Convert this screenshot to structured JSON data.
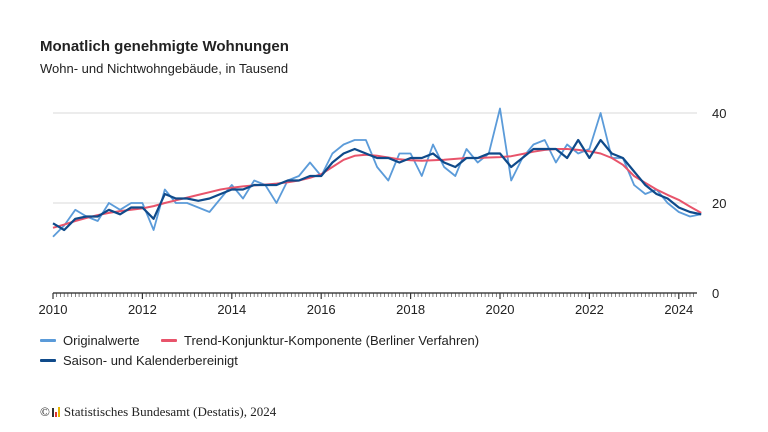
{
  "chart_data": {
    "type": "line",
    "title": "Monatlich genehmigte Wohnungen",
    "subtitle": "Wohn- und Nichtwohngebäude, in Tausend",
    "x": [
      "2010-01",
      "2010-04",
      "2010-07",
      "2010-10",
      "2011-01",
      "2011-04",
      "2011-07",
      "2011-10",
      "2012-01",
      "2012-04",
      "2012-07",
      "2012-10",
      "2013-01",
      "2013-04",
      "2013-07",
      "2013-10",
      "2014-01",
      "2014-04",
      "2014-07",
      "2014-10",
      "2015-01",
      "2015-04",
      "2015-07",
      "2015-10",
      "2016-01",
      "2016-04",
      "2016-07",
      "2016-10",
      "2017-01",
      "2017-04",
      "2017-07",
      "2017-10",
      "2018-01",
      "2018-04",
      "2018-07",
      "2018-10",
      "2019-01",
      "2019-04",
      "2019-07",
      "2019-10",
      "2020-01",
      "2020-04",
      "2020-07",
      "2020-10",
      "2021-01",
      "2021-04",
      "2021-07",
      "2021-10",
      "2022-01",
      "2022-04",
      "2022-07",
      "2022-10",
      "2023-01",
      "2023-04",
      "2023-07",
      "2023-10",
      "2024-01",
      "2024-04",
      "2024-07"
    ],
    "series": [
      {
        "name": "Originalwerte",
        "color": "#5b9bd9",
        "values": [
          12.5,
          15,
          18.5,
          17,
          16,
          20,
          18.5,
          20,
          20,
          14,
          23,
          20,
          20,
          19,
          18,
          21,
          24,
          21,
          25,
          24,
          20,
          25,
          26,
          29,
          26,
          31,
          33,
          34,
          34,
          28,
          25,
          31,
          31,
          26,
          33,
          28,
          26,
          32,
          29,
          31,
          41,
          25,
          30,
          33,
          34,
          29,
          33,
          31,
          32,
          40,
          30,
          30,
          24,
          22,
          23,
          20,
          18,
          17,
          17.5
        ]
      },
      {
        "name": "Trend-Konjunktur-Komponente (Berliner Verfahren)",
        "color": "#e8546b",
        "values": [
          14.5,
          15.2,
          16,
          16.7,
          17.3,
          17.8,
          18.2,
          18.5,
          18.8,
          19.3,
          20,
          20.6,
          21.2,
          21.8,
          22.4,
          23,
          23.4,
          23.7,
          23.9,
          24.1,
          24.3,
          24.6,
          25,
          25.6,
          26.4,
          28,
          29.6,
          30.5,
          30.7,
          30.5,
          30.1,
          29.7,
          29.5,
          29.4,
          29.5,
          29.6,
          29.8,
          30,
          30,
          30.1,
          30.2,
          30.4,
          30.9,
          31.4,
          31.8,
          32,
          32,
          31.8,
          31.5,
          31,
          30,
          28.5,
          26,
          24.5,
          23,
          21.8,
          20.7,
          19.2,
          17.8
        ]
      },
      {
        "name": "Saison- und Kalenderbereinigt",
        "color": "#0f4a8a",
        "values": [
          15.5,
          14,
          16.5,
          17,
          17,
          18.5,
          17.5,
          19,
          19,
          16.5,
          22,
          21,
          21,
          20.5,
          21,
          22,
          23,
          23,
          24,
          24,
          24,
          25,
          25,
          26,
          26,
          29,
          31,
          32,
          31,
          30,
          30,
          29,
          30,
          30,
          31,
          29,
          28,
          30,
          30,
          31,
          31,
          28,
          30,
          32,
          32,
          32,
          30,
          34,
          30,
          34,
          31,
          30,
          27,
          24,
          22,
          21,
          19,
          18,
          17.5
        ]
      }
    ],
    "xticks": [
      "2010",
      "2012",
      "2014",
      "2016",
      "2018",
      "2020",
      "2022",
      "2024"
    ],
    "yticks": [
      "0",
      "20",
      "40"
    ],
    "ylim": [
      0,
      40
    ],
    "xlim": [
      "2010-01",
      "2024-06"
    ],
    "grid": true,
    "legend_position": "bottom-left"
  },
  "legend": [
    {
      "label": "Originalwerte",
      "color": "#5b9bd9"
    },
    {
      "label": "Trend-Konjunktur-Komponente (Berliner Verfahren)",
      "color": "#e8546b"
    },
    {
      "label": "Saison- und Kalenderbereinigt",
      "color": "#0f4a8a"
    }
  ],
  "source": "Statistisches Bundesamt (Destatis), 2024",
  "copyright_symbol": "©"
}
